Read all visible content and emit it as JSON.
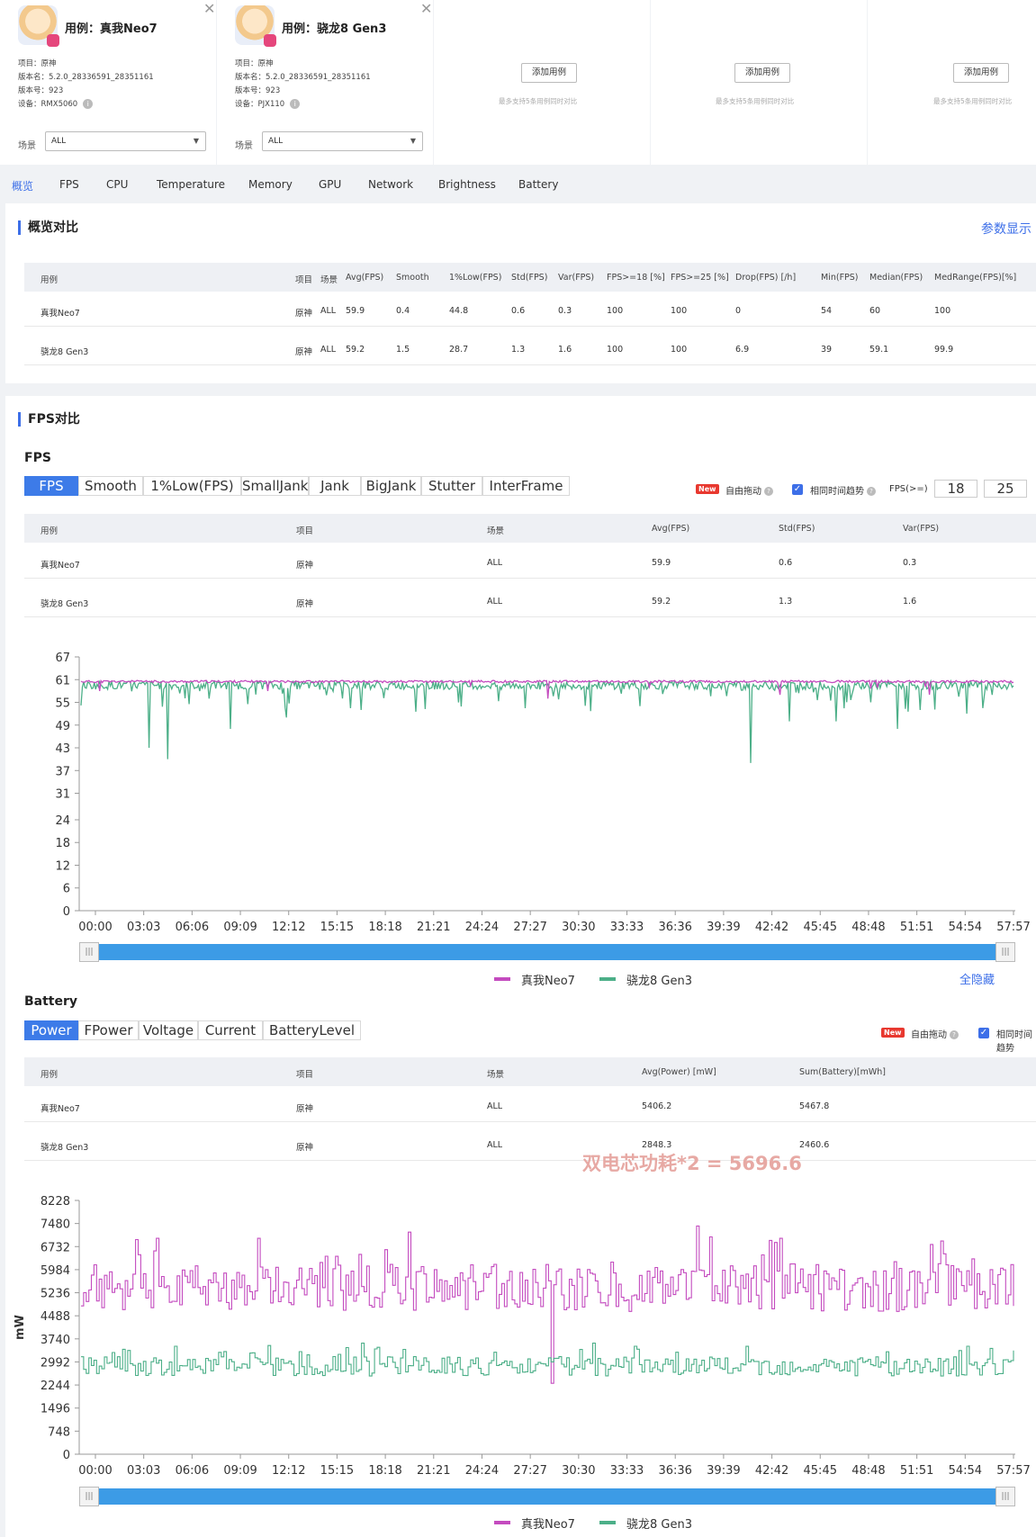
{
  "cases": [
    {
      "title": "用例：真我Neo7",
      "project": "项目：原神",
      "version_name": "版本名：5.2.0_28336591_28351161",
      "version_code": "版本号：923",
      "device": "设备：RMX5060",
      "scene_label": "场景",
      "scene_value": "ALL"
    },
    {
      "title": "用例：骁龙8 Gen3",
      "project": "项目：原神",
      "version_name": "版本名：5.2.0_28336591_28351161",
      "version_code": "版本号：923",
      "device": "设备：PJX110",
      "scene_label": "场景",
      "scene_value": "ALL"
    }
  ],
  "empty_slots": [
    {
      "button": "添加用例",
      "hint": "最多支持5条用例同时对比"
    },
    {
      "button": "添加用例",
      "hint": "最多支持5条用例同时对比"
    },
    {
      "button": "添加用例",
      "hint": "最多支持5条用例同时对比"
    }
  ],
  "tabs": [
    "概览",
    "FPS",
    "CPU",
    "Temperature",
    "Memory",
    "GPU",
    "Network",
    "Brightness",
    "Battery"
  ],
  "overview": {
    "title": "概览对比",
    "param_link": "参数显示",
    "headers": [
      "用例",
      "项目",
      "场景",
      "Avg(FPS)",
      "Smooth",
      "1%Low(FPS)",
      "Std(FPS)",
      "Var(FPS)",
      "FPS>=18 [%]",
      "FPS>=25 [%]",
      "Drop(FPS) [/h]",
      "Min(FPS)",
      "Median(FPS)",
      "MedRange(FPS)[%]"
    ],
    "rows": [
      [
        "真我Neo7",
        "原神",
        "ALL",
        "59.9",
        "0.4",
        "44.8",
        "0.6",
        "0.3",
        "100",
        "100",
        "0",
        "54",
        "60",
        "100"
      ],
      [
        "骁龙8 Gen3",
        "原神",
        "ALL",
        "59.2",
        "1.5",
        "28.7",
        "1.3",
        "1.6",
        "100",
        "100",
        "6.9",
        "39",
        "59.1",
        "99.9"
      ]
    ]
  },
  "fps": {
    "section_title": "FPS对比",
    "sub_title": "FPS",
    "seg_buttons": [
      "FPS",
      "Smooth",
      "1%Low(FPS)",
      "SmallJank",
      "Jank",
      "BigJank",
      "Stutter",
      "InterFrame"
    ],
    "new_tag": "New",
    "free_drag": "自由拖动",
    "same_trend": "相同时间趋势",
    "fps_threshold_label": "FPS(>=)",
    "threshold1": "18",
    "threshold2": "25",
    "headers": [
      "用例",
      "项目",
      "场景",
      "Avg(FPS)",
      "Std(FPS)",
      "Var(FPS)"
    ],
    "rows": [
      [
        "真我Neo7",
        "原神",
        "ALL",
        "59.9",
        "0.6",
        "0.3"
      ],
      [
        "骁龙8 Gen3",
        "原神",
        "ALL",
        "59.2",
        "1.3",
        "1.6"
      ]
    ],
    "legend_hide": "全隐藏"
  },
  "battery": {
    "sub_title": "Battery",
    "seg_buttons": [
      "Power",
      "FPower",
      "Voltage",
      "Current",
      "BatteryLevel"
    ],
    "new_tag": "New",
    "free_drag": "自由拖动",
    "same_trend": "相同时间趋势",
    "headers": [
      "用例",
      "项目",
      "场景",
      "Avg(Power) [mW]",
      "Sum(Battery)[mWh]"
    ],
    "rows": [
      [
        "真我Neo7",
        "原神",
        "ALL",
        "5406.2",
        "5467.8"
      ],
      [
        "骁龙8 Gen3",
        "原神",
        "ALL",
        "2848.3",
        "2460.6"
      ]
    ],
    "annotation": "双电芯功耗*2 = 5696.6"
  },
  "colors": {
    "accent": "#3d6fe8",
    "series1": "#c44bbf",
    "series2": "#4caf88",
    "scrollbar": "#3c9be6"
  },
  "chart_data": [
    {
      "type": "line",
      "title": "",
      "ylabel": "",
      "ylim": [
        0,
        67
      ],
      "yticks": [
        "0",
        "6",
        "12",
        "18",
        "24",
        "31",
        "37",
        "43",
        "49",
        "55",
        "61",
        "67"
      ],
      "xticks": [
        "00:00",
        "03:03",
        "06:06",
        "09:09",
        "12:12",
        "15:15",
        "18:18",
        "21:21",
        "24:24",
        "27:27",
        "30:30",
        "33:33",
        "36:36",
        "39:39",
        "42:42",
        "45:45",
        "48:48",
        "51:51",
        "54:54",
        "57:57"
      ],
      "grid": false,
      "legend_position": "bottom",
      "series": [
        {
          "name": "真我Neo7",
          "color": "#c44bbf",
          "baseline": 60.5,
          "dips": [
            [
              0.02,
              58
            ],
            [
              0.5,
              56
            ],
            [
              0.2,
              58
            ],
            [
              0.75,
              57
            ],
            [
              0.91,
              57
            ]
          ]
        },
        {
          "name": "骁龙8 Gen3",
          "color": "#4caf88",
          "baseline": 59.5,
          "dips": [
            [
              0.073,
              43
            ],
            [
              0.093,
              40
            ],
            [
              0.16,
              48
            ],
            [
              0.22,
              51
            ],
            [
              0.3,
              53
            ],
            [
              0.6,
              54
            ],
            [
              0.718,
              39
            ],
            [
              0.76,
              50
            ],
            [
              0.81,
              50
            ],
            [
              0.875,
              48
            ],
            [
              0.95,
              52
            ]
          ]
        }
      ]
    },
    {
      "type": "line",
      "title": "",
      "ylabel": "mW",
      "ylim": [
        0,
        8228
      ],
      "yticks": [
        "0",
        "748",
        "1496",
        "2244",
        "2992",
        "3740",
        "4488",
        "5236",
        "5984",
        "6732",
        "7480",
        "8228"
      ],
      "xticks": [
        "00:00",
        "03:03",
        "06:06",
        "09:09",
        "12:12",
        "15:15",
        "18:18",
        "21:21",
        "24:24",
        "27:27",
        "30:30",
        "33:33",
        "36:36",
        "39:39",
        "42:42",
        "45:45",
        "48:48",
        "51:51",
        "54:54",
        "57:57"
      ],
      "grid": false,
      "legend_position": "bottom",
      "series": [
        {
          "name": "真我Neo7",
          "color": "#c44bbf",
          "mean": 5400,
          "spread": 1100,
          "peaks": [
            [
              0.08,
              7000
            ],
            [
              0.19,
              7000
            ],
            [
              0.35,
              7200
            ],
            [
              0.66,
              7400
            ],
            [
              0.75,
              7000
            ],
            [
              0.91,
              6800
            ]
          ],
          "dip": [
            0.503,
            2300
          ]
        },
        {
          "name": "骁龙8 Gen3",
          "color": "#4caf88",
          "mean": 2850,
          "spread": 450,
          "peaks": [
            [
              0.1,
              3500
            ],
            [
              0.3,
              3600
            ],
            [
              0.55,
              3600
            ],
            [
              0.95,
              3500
            ]
          ]
        }
      ]
    }
  ]
}
